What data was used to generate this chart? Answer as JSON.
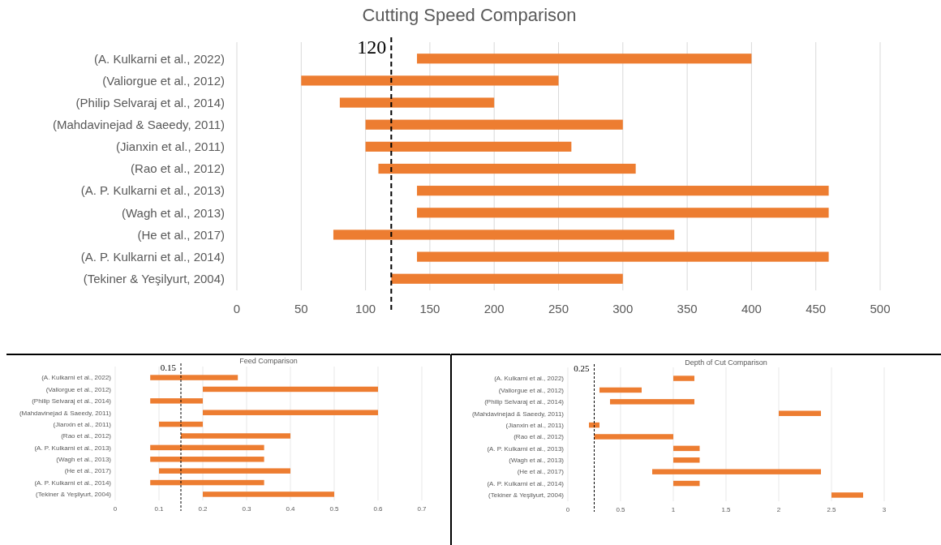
{
  "chart_data": [
    {
      "type": "bar",
      "orientation": "horizontal",
      "title": "Cutting Speed Comparison",
      "categories": [
        "(A. Kulkarni et al., 2022)",
        "(Valiorgue et al., 2012)",
        "(Philip Selvaraj et al., 2014)",
        "(Mahdavinejad & Saeedy, 2011)",
        "(Jianxin et al., 2011)",
        "(Rao et al., 2012)",
        "(A. P. Kulkarni et al., 2013)",
        "(Wagh et al., 2013)",
        "(He et al., 2017)",
        "(A. P. Kulkarni et al., 2014)",
        "(Tekiner & Yeşilyurt, 2004)"
      ],
      "base": [
        140,
        50,
        80,
        100,
        100,
        110,
        140,
        140,
        75,
        140,
        120
      ],
      "values": [
        260,
        200,
        120,
        200,
        160,
        200,
        320,
        320,
        265,
        320,
        180
      ],
      "color": "#ed7d31",
      "xlim": [
        0,
        500
      ],
      "xticks": [
        0,
        50,
        100,
        150,
        200,
        250,
        300,
        350,
        400,
        450,
        500
      ],
      "grid": "x",
      "ref_lines": [
        {
          "axis": "x",
          "value": 120,
          "label": "120",
          "color": "#000000",
          "line_style": "dashed"
        }
      ]
    },
    {
      "type": "bar",
      "orientation": "horizontal",
      "title": "Feed Comparison",
      "categories": [
        "(A. Kulkarni et al., 2022)",
        "(Valiorgue et al., 2012)",
        "(Philip Selvaraj et al., 2014)",
        "(Mahdavinejad & Saeedy, 2011)",
        "(Jianxin et al., 2011)",
        "(Rao et al., 2012)",
        "(A. P. Kulkarni et al., 2013)",
        "(Wagh et al., 2013)",
        "(He et al., 2017)",
        "(A. P. Kulkarni et al., 2014)",
        "(Tekiner & Yeşilyurt, 2004)"
      ],
      "base": [
        0.08,
        0.2,
        0.08,
        0.2,
        0.1,
        0.15,
        0.08,
        0.08,
        0.1,
        0.08,
        0.2
      ],
      "values": [
        0.2,
        0.4,
        0.12,
        0.4,
        0.1,
        0.25,
        0.26,
        0.26,
        0.3,
        0.26,
        0.3
      ],
      "color": "#ed7d31",
      "xlim": [
        0,
        0.7
      ],
      "xticks": [
        0,
        0.1,
        0.2,
        0.3,
        0.4,
        0.5,
        0.6,
        0.7
      ],
      "grid": "x",
      "ref_lines": [
        {
          "axis": "x",
          "value": 0.15,
          "label": "0.15",
          "color": "#000000",
          "line_style": "dashed"
        }
      ]
    },
    {
      "type": "bar",
      "orientation": "horizontal",
      "title": "Depth of Cut Comparison",
      "categories": [
        "(A. Kulkarni et al., 2022)",
        "(Valiorgue et al., 2012)",
        "(Philip Selvaraj et al., 2014)",
        "(Mahdavinejad & Saeedy, 2011)",
        "(Jianxin et al., 2011)",
        "(Rao et al., 2012)",
        "(A. P. Kulkarni et al., 2013)",
        "(Wagh et al., 2013)",
        "(He et al., 2017)",
        "(A. P. Kulkarni et al., 2014)",
        "(Tekiner & Yeşilyurt, 2004)"
      ],
      "base": [
        1,
        0.3,
        0.4,
        2,
        0.2,
        0.25,
        1,
        1,
        0.8,
        1,
        2.5
      ],
      "values": [
        0.2,
        0.4,
        0.8,
        0.4,
        0.1,
        0.75,
        0.25,
        0.25,
        1.6,
        0.25,
        0.3
      ],
      "color": "#ed7d31",
      "xlim": [
        0,
        3
      ],
      "xticks": [
        0,
        0.5,
        1,
        1.5,
        2,
        2.5,
        3
      ],
      "grid": "x",
      "ref_lines": [
        {
          "axis": "x",
          "value": 0.25,
          "label": "0.25",
          "color": "#000000",
          "line_style": "dashed"
        }
      ]
    }
  ]
}
